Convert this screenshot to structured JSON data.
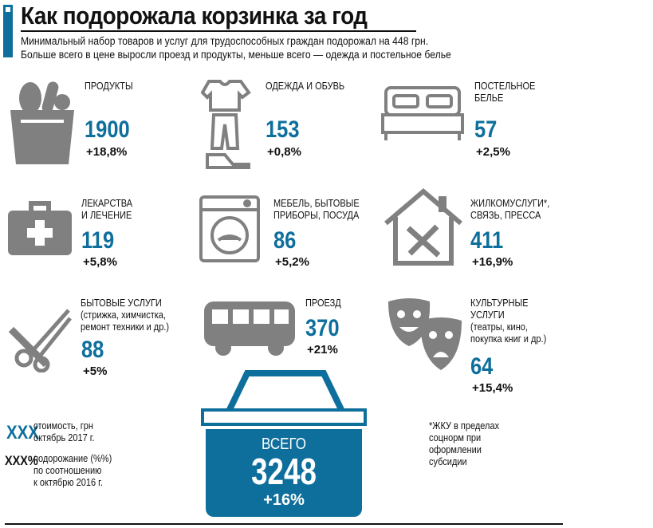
{
  "title": "Как подорожала корзинка за год",
  "subtitle": [
    "Минимальный набор товаров и услуг для трудоспособных граждан подорожал на 448 грн.",
    "Больше всего в цене выросли проезд и продукты, меньше всего — одежда и постельное белье"
  ],
  "accent": "#0e6f9c",
  "icon_color": "#808080",
  "items": [
    {
      "label": [
        "Продукты"
      ],
      "value": "1900",
      "change": "+18,8%",
      "icon": "grocery-bag-icon"
    },
    {
      "label": [
        "Одежда и обувь"
      ],
      "value": "153",
      "change": "+0,8%",
      "icon": "clothes-icon"
    },
    {
      "label": [
        "Постельное",
        "белье"
      ],
      "value": "57",
      "change": "+2,5%",
      "icon": "bed-icon"
    },
    {
      "label": [
        "Лекарства",
        "и лечение"
      ],
      "value": "119",
      "change": "+5,8%",
      "icon": "first-aid-kit-icon"
    },
    {
      "label": [
        "Мебель, бытовые",
        "приборы, посуда"
      ],
      "value": "86",
      "change": "+5,2%",
      "icon": "washing-machine-icon"
    },
    {
      "label": [
        "Жилкомуслуги*,",
        "связь, пресса"
      ],
      "value": "411",
      "change": "+16,9%",
      "icon": "house-tools-icon"
    },
    {
      "label": [
        "Бытовые услуги"
      ],
      "note": [
        "(стрижка, химчистка,",
        "ремонт техники и др.)"
      ],
      "value": "88",
      "change": "+5%",
      "icon": "scissors-comb-icon"
    },
    {
      "label": [
        "Проезд"
      ],
      "value": "370",
      "change": "+21%",
      "icon": "bus-icon"
    },
    {
      "label": [
        "Культурные",
        "услуги"
      ],
      "note": [
        "(театры, кино,",
        "покупка книг и др.)"
      ],
      "value": "64",
      "change": "+15,4%",
      "icon": "theater-masks-icon"
    }
  ],
  "total": {
    "label": "ВСЕГО",
    "value": "3248",
    "change": "+16%"
  },
  "legend": {
    "value_sample": "ХХХ",
    "value_desc": [
      "стоимость, грн",
      "октябрь 2017 г."
    ],
    "pct_sample": "ХХХ%",
    "pct_desc": [
      "подорожание (%%)",
      "по соотношению",
      "к октябрю 2016 г."
    ]
  },
  "footnote": [
    "*ЖКУ в пределах",
    "соцнорм при",
    "оформлении",
    "субсидии"
  ]
}
